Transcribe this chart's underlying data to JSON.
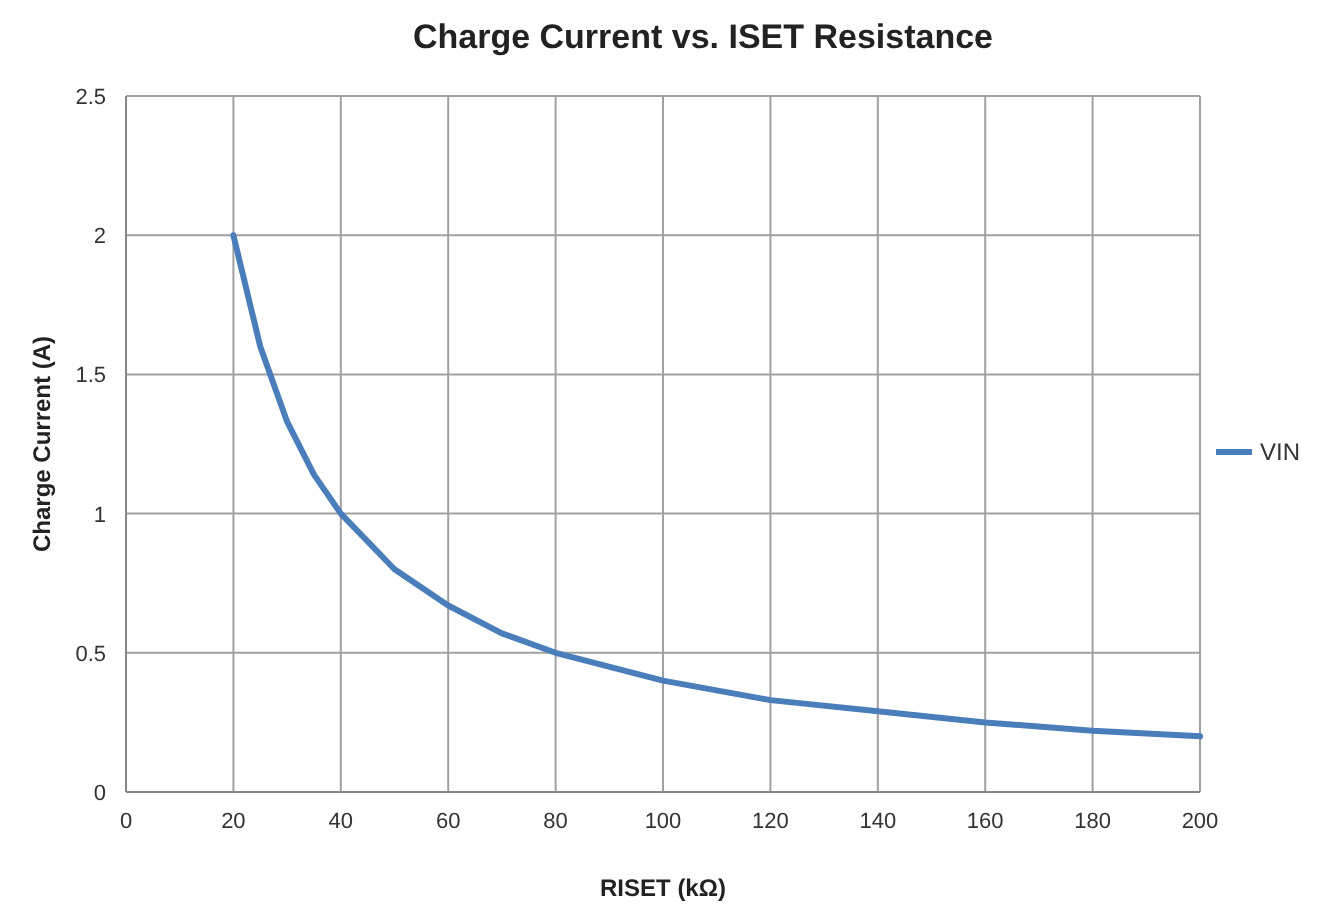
{
  "chart_data": {
    "type": "line",
    "title": "Charge Current vs. ISET Resistance",
    "xlabel": "RISET (kΩ)",
    "ylabel": "Charge Current (A)",
    "x": [
      20,
      25,
      30,
      35,
      40,
      50,
      60,
      70,
      80,
      100,
      120,
      140,
      160,
      180,
      200
    ],
    "series": [
      {
        "name": "VIN",
        "color": "#4a7ebb",
        "values": [
          2,
          1.6,
          1.33,
          1.14,
          1,
          0.8,
          0.67,
          0.57,
          0.5,
          0.4,
          0.33,
          0.29,
          0.25,
          0.22,
          0.2
        ]
      }
    ],
    "xlim": [
      0,
      200
    ],
    "xticks": [
      0,
      20,
      40,
      60,
      80,
      100,
      120,
      140,
      160,
      180,
      200
    ],
    "ylim": [
      0,
      2.5
    ],
    "yticks": [
      0,
      0.5,
      1,
      1.5,
      2,
      2.5
    ],
    "grid": true,
    "legend": "right",
    "marker": "none",
    "line_style": "solid"
  }
}
